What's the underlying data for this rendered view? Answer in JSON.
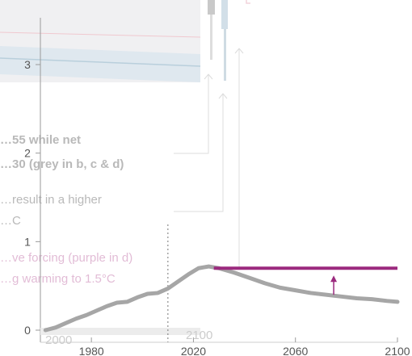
{
  "chart_data": {
    "type": "line",
    "xlim": [
      1960,
      2100
    ],
    "ylim": [
      0,
      3.5
    ],
    "x_ticks": [
      1980,
      2020,
      2060,
      2100
    ],
    "y_ticks": [
      0,
      1,
      2,
      3
    ],
    "x_tick_labels": [
      "1980",
      "2020",
      "2060",
      "2100"
    ],
    "y_tick_labels": [
      "0",
      "1",
      "2",
      "3"
    ],
    "vertical_marker_x": 2010,
    "series": [
      {
        "color": "#a6a6a6",
        "x": [
          1962,
          1966,
          1970,
          1974,
          1978,
          1982,
          1986,
          1990,
          1994,
          1998,
          2002,
          2006,
          2010,
          2014,
          2018,
          2022,
          2026,
          2030,
          2036,
          2042,
          2048,
          2054,
          2060,
          2066,
          2072,
          2078,
          2084,
          2090,
          2096,
          2100
        ],
        "y": [
          0.0,
          0.03,
          0.08,
          0.13,
          0.17,
          0.22,
          0.27,
          0.31,
          0.32,
          0.37,
          0.41,
          0.42,
          0.47,
          0.55,
          0.63,
          0.7,
          0.72,
          0.7,
          0.65,
          0.59,
          0.53,
          0.48,
          0.45,
          0.42,
          0.4,
          0.38,
          0.36,
          0.35,
          0.33,
          0.32
        ]
      },
      {
        "color": "#9b2a7e",
        "x": [
          2028,
          2100
        ],
        "y": [
          0.7,
          0.7
        ]
      }
    ],
    "annotations": [
      {
        "text": "…55 while net",
        "color": "#b9b9b9"
      },
      {
        "text": "…30 (grey in b, c & d)",
        "color": "#b9b9b9"
      },
      {
        "text": "…result in a higher",
        "color": "#b9b9b9"
      },
      {
        "text": "…C",
        "color": "#b9b9b9"
      },
      {
        "text": "…ve forcing (purple in d)",
        "color": "#e2bcd6"
      },
      {
        "text": "…g warming to 1.5°C",
        "color": "#e2bcd6"
      },
      {
        "text": "2000",
        "color": "#cccccc"
      },
      {
        "text": "2100",
        "color": "#cccccc"
      }
    ],
    "colors": {
      "series_grey": "#a6a6a6",
      "forcing_purple": "#9b2a7e",
      "band_blue": "#dde7ed",
      "faded_text_grey": "#b9b9b9",
      "faded_text_purple": "#e2bcd6"
    }
  }
}
